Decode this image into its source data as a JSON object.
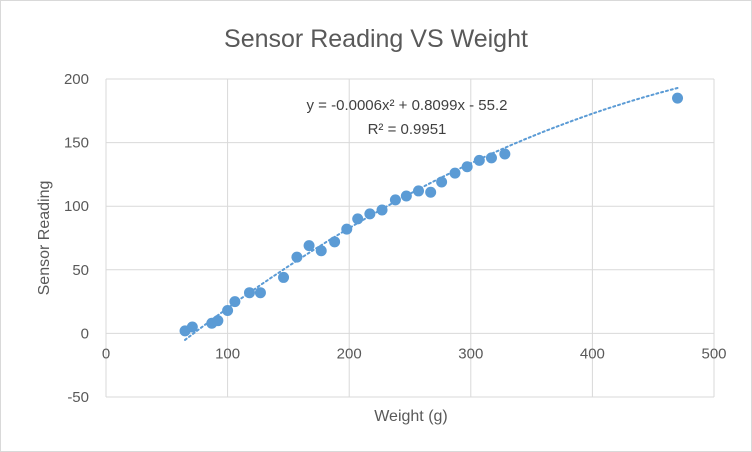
{
  "chart_data": {
    "type": "scatter",
    "title": "Sensor Reading VS Weight",
    "xlabel": "Weight (g)",
    "ylabel": "Sensor Reading",
    "xlim": [
      0,
      500
    ],
    "ylim": [
      -50,
      200
    ],
    "xticks": [
      0,
      100,
      200,
      300,
      400,
      500
    ],
    "yticks": [
      -50,
      0,
      50,
      100,
      150,
      200
    ],
    "x_tick_labels": [
      "0",
      "100",
      "200",
      "300",
      "400",
      "500"
    ],
    "y_tick_labels": [
      "-50",
      "0",
      "50",
      "100",
      "150",
      "200"
    ],
    "grid": true,
    "series": [
      {
        "color": "#5b9bd5",
        "points": [
          [
            65,
            2
          ],
          [
            71,
            5
          ],
          [
            87,
            8
          ],
          [
            92,
            10
          ],
          [
            100,
            18
          ],
          [
            106,
            25
          ],
          [
            118,
            32
          ],
          [
            127,
            32
          ],
          [
            146,
            44
          ],
          [
            157,
            60
          ],
          [
            167,
            69
          ],
          [
            177,
            65
          ],
          [
            188,
            72
          ],
          [
            198,
            82
          ],
          [
            207,
            90
          ],
          [
            217,
            94
          ],
          [
            227,
            97
          ],
          [
            238,
            105
          ],
          [
            247,
            108
          ],
          [
            257,
            112
          ],
          [
            267,
            111
          ],
          [
            276,
            119
          ],
          [
            287,
            126
          ],
          [
            297,
            131
          ],
          [
            307,
            136
          ],
          [
            317,
            138
          ],
          [
            328,
            141
          ],
          [
            470,
            185
          ]
        ]
      }
    ],
    "trendline": {
      "type": "polynomial",
      "order": 2,
      "coefficients": [
        -0.0006,
        0.8099,
        -55.2
      ],
      "x_range": [
        65,
        470
      ],
      "style": "dotted",
      "color": "#5b9bd5",
      "equation_label": "y = -0.0006x² + 0.8099x - 55.2",
      "r2_label": "R² = 0.9951"
    }
  }
}
